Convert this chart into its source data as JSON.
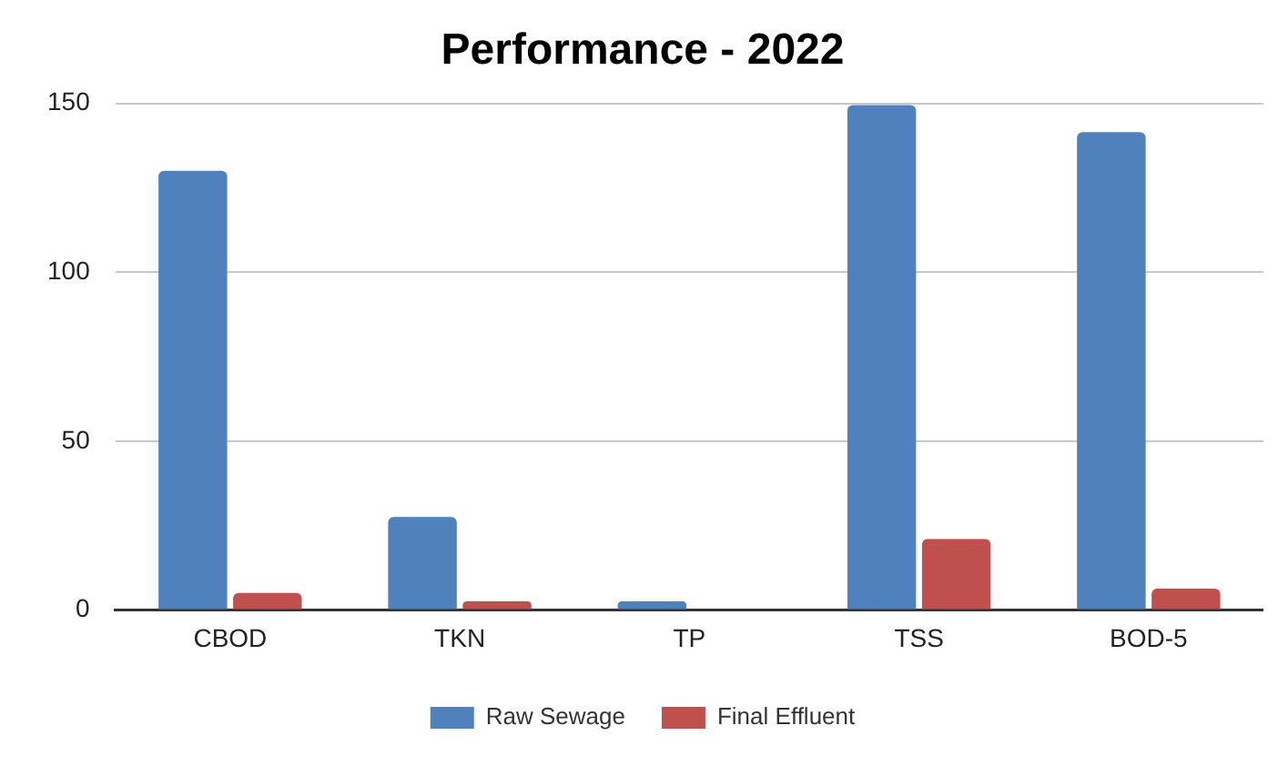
{
  "chart_data": {
    "type": "bar",
    "title": "Performance - 2022",
    "categories": [
      "CBOD",
      "TKN",
      "TP",
      "TSS",
      "BOD-5"
    ],
    "series": [
      {
        "name": "Raw Sewage",
        "color": "#4f81bd",
        "values": [
          130,
          27.5,
          2.5,
          149.5,
          141.5
        ]
      },
      {
        "name": "Final Effluent",
        "color": "#c0504d",
        "values": [
          5,
          2.5,
          0,
          21,
          6.3
        ]
      }
    ],
    "ylim": [
      0,
      150
    ],
    "yticks": [
      0,
      50,
      100,
      150
    ],
    "grid": "y",
    "legend": "bottom"
  }
}
